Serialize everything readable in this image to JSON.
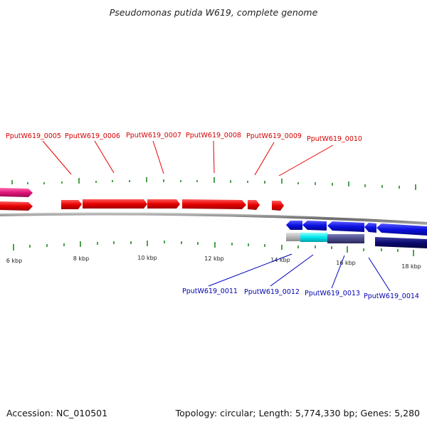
{
  "title": "Pseudomonas putida W619, complete genome",
  "footer": {
    "accession": "Accession: NC_010501",
    "summary": "Topology: circular; Length: 5,774,330 bp; Genes: 5,280"
  },
  "colors": {
    "forward_gene": "#e60000",
    "forward_partial": "#e0157a",
    "reverse_gene": "#0a10e0",
    "reverse_dark": "#0a0a70",
    "reverse_mid": "#4a4a8a",
    "reverse_cyan": "#00e5ee",
    "reverse_gray": "#b8b8b8",
    "backbone": "#8a8a8a",
    "tick": "#1f8a1f",
    "label_forward": "#d40000",
    "label_reverse": "#0000b0"
  },
  "top_labels": [
    {
      "text": "PputW619_0005"
    },
    {
      "text": "PputW619_0006"
    },
    {
      "text": "PputW619_0007"
    },
    {
      "text": "PputW619_0008"
    },
    {
      "text": "PputW619_0009"
    },
    {
      "text": "PputW619_0010"
    }
  ],
  "bottom_labels": [
    {
      "text": "PputW619_0011"
    },
    {
      "text": "PputW619_0012"
    },
    {
      "text": "PputW619_0013"
    },
    {
      "text": "PputW619_0014"
    }
  ],
  "kbp_labels": [
    "6 kbp",
    "8 kbp",
    "10 kbp",
    "12 kbp",
    "14 kbp",
    "16 kbp",
    "18 kbp"
  ]
}
